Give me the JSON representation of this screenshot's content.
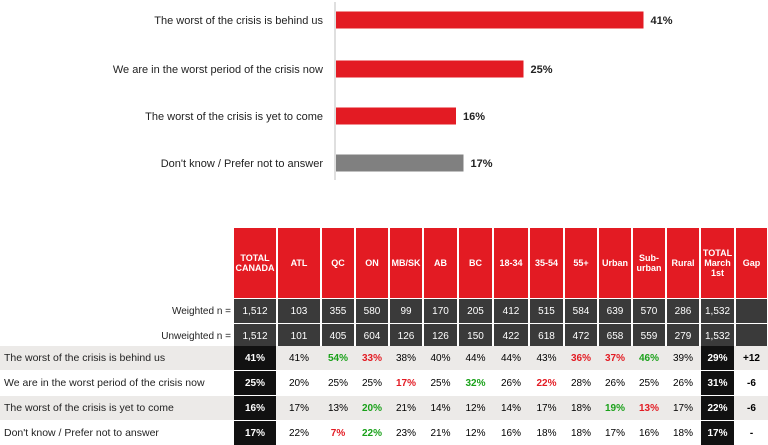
{
  "chart_data": {
    "type": "bar",
    "orientation": "horizontal",
    "categories": [
      "The worst of the crisis is behind us",
      "We are in the worst period of the crisis now",
      "The worst of the crisis is yet to come",
      "Don't know / Prefer not to answer"
    ],
    "values": [
      41,
      25,
      16,
      17
    ],
    "value_labels": [
      "41%",
      "25%",
      "16%",
      "17%"
    ],
    "colors": [
      "#e31b23",
      "#e31b23",
      "#e31b23",
      "#808080"
    ],
    "xlim": [
      0,
      50
    ]
  },
  "table": {
    "headers": [
      "TOTAL CANADA",
      "ATL",
      "QC",
      "ON",
      "MB/SK",
      "AB",
      "BC",
      "18-34",
      "35-54",
      "55+",
      "Urban",
      "Sub-urban",
      "Rural",
      "TOTAL March 1st",
      "Gap"
    ],
    "base_rows": [
      {
        "label": "Weighted n =",
        "cells": [
          "1,512",
          "103",
          "355",
          "580",
          "99",
          "170",
          "205",
          "412",
          "515",
          "584",
          "639",
          "570",
          "286",
          "1,532",
          ""
        ]
      },
      {
        "label": "Unweighted n =",
        "cells": [
          "1,512",
          "101",
          "405",
          "604",
          "126",
          "126",
          "150",
          "422",
          "618",
          "472",
          "658",
          "559",
          "279",
          "1,532",
          ""
        ]
      }
    ],
    "data_rows": [
      {
        "label": "The worst of the crisis is behind us",
        "cells": [
          "41%",
          "41%",
          "54%",
          "33%",
          "38%",
          "40%",
          "44%",
          "44%",
          "43%",
          "36%",
          "37%",
          "46%",
          "39%",
          "29%",
          "+12"
        ],
        "colors": [
          "",
          "",
          "green",
          "red",
          "",
          "",
          "",
          "",
          "",
          "red",
          "red",
          "green",
          "",
          "",
          ""
        ]
      },
      {
        "label": "We are in the worst period of the crisis now",
        "cells": [
          "25%",
          "20%",
          "25%",
          "25%",
          "17%",
          "25%",
          "32%",
          "26%",
          "22%",
          "28%",
          "26%",
          "25%",
          "26%",
          "31%",
          "-6"
        ],
        "colors": [
          "",
          "",
          "",
          "",
          "red",
          "",
          "green",
          "",
          "red",
          "",
          "",
          "",
          "",
          "",
          ""
        ]
      },
      {
        "label": "The worst of the crisis is yet to come",
        "cells": [
          "16%",
          "17%",
          "13%",
          "20%",
          "21%",
          "14%",
          "12%",
          "14%",
          "17%",
          "18%",
          "19%",
          "13%",
          "17%",
          "22%",
          "-6"
        ],
        "colors": [
          "",
          "",
          "",
          "green",
          "",
          "",
          "",
          "",
          "",
          "",
          "green",
          "red",
          "",
          "",
          ""
        ]
      },
      {
        "label": "Don't know / Prefer not to answer",
        "cells": [
          "17%",
          "22%",
          "7%",
          "22%",
          "23%",
          "21%",
          "12%",
          "16%",
          "18%",
          "18%",
          "17%",
          "16%",
          "18%",
          "17%",
          "-"
        ],
        "colors": [
          "",
          "",
          "red",
          "green",
          "",
          "",
          "",
          "",
          "",
          "",
          "",
          "",
          "",
          "",
          ""
        ]
      }
    ]
  }
}
